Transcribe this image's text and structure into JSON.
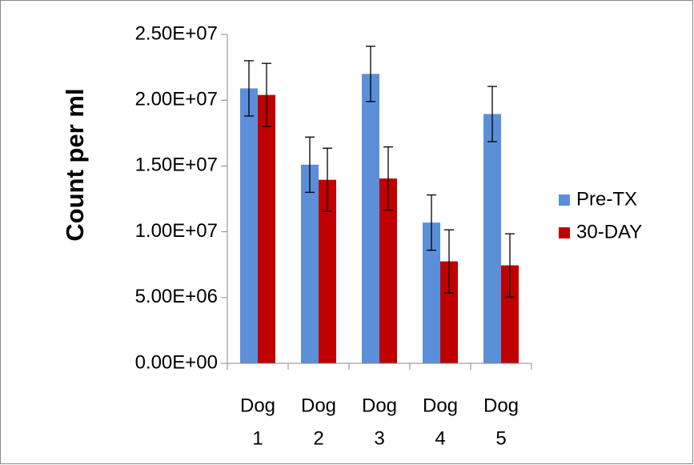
{
  "chart_data": {
    "type": "bar",
    "title": "",
    "xlabel": "",
    "ylabel": "Count per ml",
    "ylim": [
      0,
      25000000
    ],
    "y_ticks": [
      {
        "value": 0,
        "label": "0.00E+00"
      },
      {
        "value": 5000000,
        "label": "5.00E+06"
      },
      {
        "value": 10000000,
        "label": "1.00E+07"
      },
      {
        "value": 15000000,
        "label": "1.50E+07"
      },
      {
        "value": 20000000,
        "label": "2.00E+07"
      },
      {
        "value": 25000000,
        "label": "2.50E+07"
      }
    ],
    "categories": [
      "Dog 1",
      "Dog 2",
      "Dog 3",
      "Dog 4",
      "Dog 5"
    ],
    "category_lines": [
      [
        "Dog",
        "1"
      ],
      [
        "Dog",
        "2"
      ],
      [
        "Dog",
        "3"
      ],
      [
        "Dog",
        "4"
      ],
      [
        "Dog",
        "5"
      ]
    ],
    "series": [
      {
        "name": "Pre-TX",
        "color": "#5B8FD9",
        "values": [
          20900000,
          15100000,
          22000000,
          10700000,
          18950000
        ],
        "errors": [
          2100000,
          2100000,
          2100000,
          2100000,
          2100000
        ]
      },
      {
        "name": "30-DAY",
        "color": "#C00000",
        "values": [
          20400000,
          13950000,
          14050000,
          7750000,
          7450000
        ],
        "errors": [
          2400000,
          2400000,
          2400000,
          2400000,
          2400000
        ]
      }
    ],
    "grid": false,
    "legend_position": "right"
  }
}
